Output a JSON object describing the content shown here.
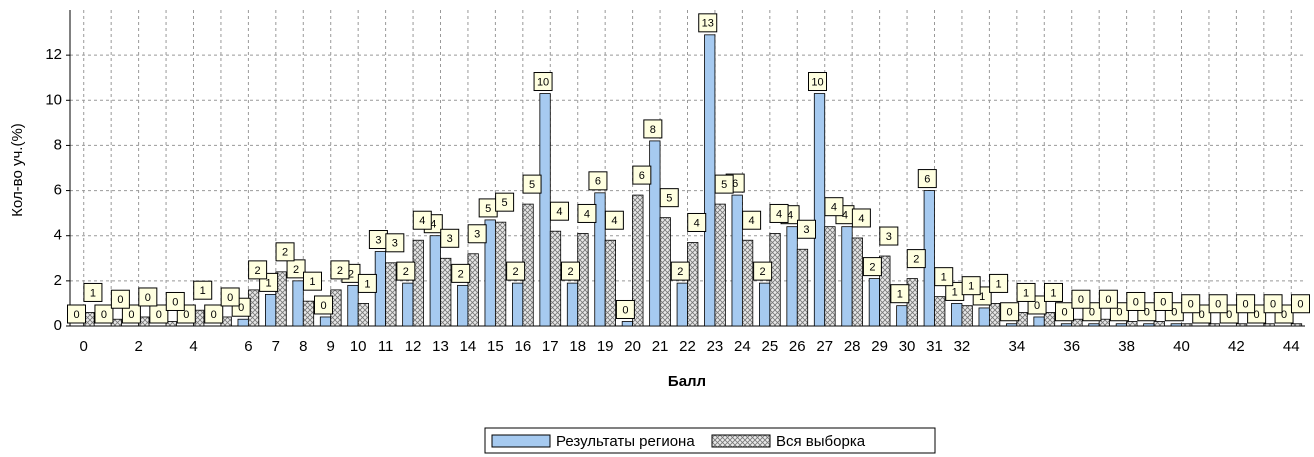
{
  "chart_data": {
    "type": "bar",
    "ylabel": "Кол-во уч.(%)",
    "xlabel": "Балл",
    "categories": [
      "0",
      null,
      "2",
      null,
      "4",
      null,
      "6",
      "7",
      "8",
      "9",
      "10",
      "11",
      "12",
      "13",
      "14",
      "15",
      "16",
      "17",
      "18",
      "19",
      "20",
      "21",
      "22",
      "23",
      "24",
      "25",
      "26",
      "27",
      "28",
      "29",
      "30",
      "31",
      "32",
      null,
      "34",
      null,
      "36",
      null,
      "38",
      null,
      "40",
      null,
      "42",
      null,
      "44"
    ],
    "series": [
      {
        "name": "Результаты региона",
        "color": "#a6caf0",
        "values": [
          0,
          0,
          0,
          0,
          0,
          0,
          0.3,
          1.4,
          2.0,
          0.4,
          1.8,
          3.3,
          1.9,
          4.0,
          1.8,
          4.7,
          1.9,
          10.3,
          1.9,
          5.9,
          0.2,
          8.2,
          1.9,
          12.9,
          5.8,
          1.9,
          4.4,
          10.3,
          4.4,
          2.1,
          0.9,
          6.0,
          1.0,
          0.8,
          0.1,
          0.4,
          0.1,
          0.1,
          0.1,
          0.1,
          0.1,
          0,
          0,
          0,
          0
        ],
        "value_labels": [
          "0",
          "0",
          "0",
          "0",
          "0",
          "0",
          "0",
          "1",
          "2",
          "0",
          "2",
          "3",
          "2",
          "4",
          "2",
          "5",
          "2",
          "10",
          "2",
          "6",
          "0",
          "8",
          "2",
          "13",
          "6",
          "2",
          "4",
          "10",
          "4",
          "2",
          "1",
          "6",
          "1",
          "1",
          "0",
          "0",
          "0",
          "0",
          "0",
          "0",
          "0",
          "0",
          "0",
          "0",
          "0"
        ]
      },
      {
        "name": "Вся выборка",
        "color": "#c0c0c0",
        "values": [
          0.6,
          0.3,
          0.4,
          0.2,
          0.7,
          0.4,
          1.6,
          2.4,
          1.1,
          1.6,
          1.0,
          2.8,
          3.8,
          3.0,
          3.2,
          4.6,
          5.4,
          4.2,
          4.1,
          3.8,
          5.8,
          4.8,
          3.7,
          5.4,
          3.8,
          4.1,
          3.4,
          4.4,
          3.9,
          3.1,
          2.1,
          1.3,
          0.9,
          1.0,
          0.6,
          0.6,
          0.3,
          0.3,
          0.2,
          0.2,
          0.1,
          0.1,
          0.1,
          0.1,
          0.1
        ],
        "value_labels": [
          "1",
          "0",
          "0",
          "0",
          "1",
          "0",
          "2",
          "2",
          "1",
          "2",
          "1",
          "3",
          "4",
          "3",
          "3",
          "5",
          "5",
          "4",
          "4",
          "4",
          "6",
          "5",
          "4",
          "5",
          "4",
          "4",
          "3",
          "4",
          "4",
          "3",
          "2",
          "1",
          "1",
          "1",
          "1",
          "1",
          "0",
          "0",
          "0",
          "0",
          "0",
          "0",
          "0",
          "0",
          "0"
        ]
      }
    ],
    "ylim": [
      0,
      14
    ],
    "yticks": [
      0,
      2,
      4,
      6,
      8,
      10,
      12
    ],
    "grid": true,
    "legend": "bottom"
  }
}
